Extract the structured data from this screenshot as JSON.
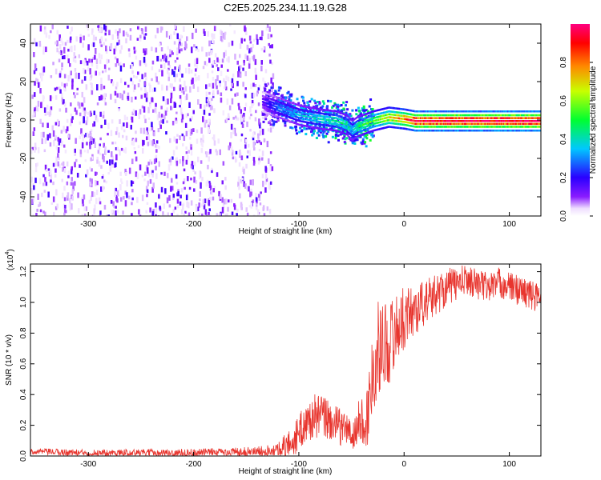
{
  "title": "C2E5.2025.234.11.19.G28",
  "chart_data": [
    {
      "type": "heatmap",
      "title": "C2E5.2025.234.11.19.G28",
      "xlabel": "Height of straight line (km)",
      "ylabel": "Frequency (Hz)",
      "xlim": [
        -355,
        130
      ],
      "ylim": [
        -50,
        50
      ],
      "xticks": [
        -300,
        -200,
        -100,
        0,
        100
      ],
      "xtick_labels": [
        "-300",
        "-200",
        "-100",
        "0",
        "100"
      ],
      "yticks": [
        -40,
        -20,
        0,
        20,
        40
      ],
      "ytick_labels": [
        "-40",
        "-20",
        "0",
        "20",
        "40"
      ],
      "colorbar": {
        "label": "Normalized spectral amplitude",
        "range": [
          0,
          1
        ],
        "ticks": [
          0.0,
          0.2,
          0.4,
          0.6,
          0.8
        ],
        "tick_labels": [
          "0.0",
          "0.2",
          "0.4",
          "0.6",
          "0.8"
        ],
        "colors": [
          "#ffffff",
          "#7f00ff",
          "#0000ff",
          "#00ffff",
          "#00ff00",
          "#ffff00",
          "#ff0000",
          "#ff0080"
        ]
      },
      "features": {
        "noise_region_x": [
          -355,
          -125
        ],
        "noise_amplitude": 0.12,
        "transition_x": [
          -135,
          -30
        ],
        "carrier_line": {
          "x": [
            -135,
            -120,
            -100,
            -80,
            -65,
            -55,
            -50,
            -45,
            -30,
            -15,
            0,
            10,
            40,
            80,
            130
          ],
          "freq": [
            10,
            7,
            3,
            1,
            0,
            -2,
            -5,
            -3,
            0,
            2,
            1,
            0,
            0,
            0,
            0
          ],
          "amplitude": [
            0.15,
            0.3,
            0.35,
            0.4,
            0.45,
            0.45,
            0.35,
            0.45,
            0.55,
            0.7,
            0.8,
            0.95,
            0.97,
            0.98,
            0.98
          ]
        }
      }
    },
    {
      "type": "line",
      "xlabel": "Height of straight line (km)",
      "ylabel": "SNR (10 * v/v)",
      "y_scale_label": "(x10",
      "y_scale_exp": "4",
      "y_scale_suffix": ")",
      "xlim": [
        -355,
        130
      ],
      "ylim": [
        0,
        1.25
      ],
      "xticks": [
        -300,
        -200,
        -100,
        0,
        100
      ],
      "xtick_labels": [
        "-300",
        "-200",
        "-100",
        "0",
        "100"
      ],
      "yticks": [
        0.0,
        0.2,
        0.4,
        0.6,
        0.8,
        1.0,
        1.2
      ],
      "ytick_labels": [
        "0.0",
        "0.2",
        "0.4",
        "0.6",
        "0.8",
        "1.0",
        "1.2"
      ],
      "color": "#e8352e",
      "envelope": {
        "x": [
          -355,
          -300,
          -200,
          -140,
          -120,
          -105,
          -95,
          -85,
          -75,
          -65,
          -55,
          -48,
          -42,
          -36,
          -30,
          -25,
          -20,
          -15,
          -10,
          -5,
          0,
          10,
          20,
          30,
          40,
          50,
          60,
          70,
          80,
          90,
          100,
          110,
          120,
          130
        ],
        "y": [
          0.03,
          0.02,
          0.02,
          0.03,
          0.04,
          0.1,
          0.2,
          0.26,
          0.25,
          0.2,
          0.18,
          0.12,
          0.25,
          0.2,
          0.55,
          0.7,
          0.75,
          0.72,
          0.8,
          0.85,
          0.9,
          0.95,
          1.0,
          1.05,
          1.1,
          1.12,
          1.15,
          1.12,
          1.1,
          1.13,
          1.1,
          1.08,
          1.05,
          1.02
        ]
      },
      "noise": {
        "x": [
          -355,
          -140,
          -120,
          -100,
          -80,
          -60,
          -50,
          -40,
          -30,
          -20,
          -10,
          0,
          20,
          60,
          130
        ],
        "spread": [
          0.02,
          0.03,
          0.05,
          0.12,
          0.15,
          0.12,
          0.1,
          0.15,
          0.3,
          0.3,
          0.25,
          0.2,
          0.15,
          0.1,
          0.1
        ]
      }
    }
  ]
}
